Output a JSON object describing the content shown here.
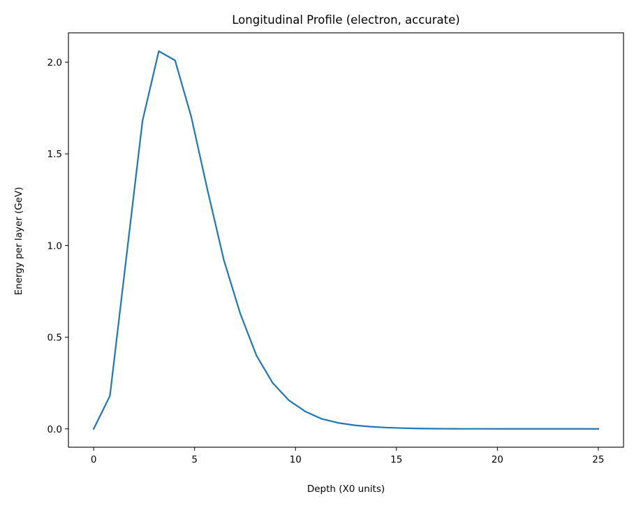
{
  "chart_data": {
    "type": "line",
    "title": "Longitudinal Profile (electron, accurate)",
    "xlabel": "Depth (X0 units)",
    "ylabel": "Energy per layer (GeV)",
    "xlim": [
      -1.25,
      26.25
    ],
    "ylim": [
      -0.1,
      2.16
    ],
    "xticks": [
      0,
      5,
      10,
      15,
      20,
      25
    ],
    "xtick_labels": [
      "0",
      "5",
      "10",
      "15",
      "20",
      "25"
    ],
    "yticks": [
      0.0,
      0.5,
      1.0,
      1.5,
      2.0
    ],
    "ytick_labels": [
      "0.0",
      "0.5",
      "1.0",
      "1.5",
      "2.0"
    ],
    "grid": false,
    "legend": "none",
    "series": [
      {
        "color": "#1f77b4",
        "x": [
          0,
          0.806,
          1.613,
          2.419,
          3.226,
          4.032,
          4.839,
          5.645,
          6.452,
          7.258,
          8.065,
          8.871,
          9.677,
          10.484,
          11.29,
          12.097,
          12.903,
          13.71,
          14.516,
          15.323,
          16.129,
          16.935,
          17.742,
          18.548,
          19.355,
          20.161,
          20.968,
          21.774,
          22.581,
          23.387,
          24.194,
          25.0
        ],
        "y": [
          0.0,
          0.18,
          0.93,
          1.68,
          2.06,
          2.01,
          1.7,
          1.3,
          0.92,
          0.63,
          0.4,
          0.25,
          0.155,
          0.095,
          0.055,
          0.033,
          0.02,
          0.012,
          0.007,
          0.004,
          0.002,
          0.001,
          0.0006,
          0.0003,
          0.0002,
          0.0001,
          0.0,
          0.0,
          0.0,
          0.0,
          0.0,
          0.0
        ]
      }
    ]
  }
}
